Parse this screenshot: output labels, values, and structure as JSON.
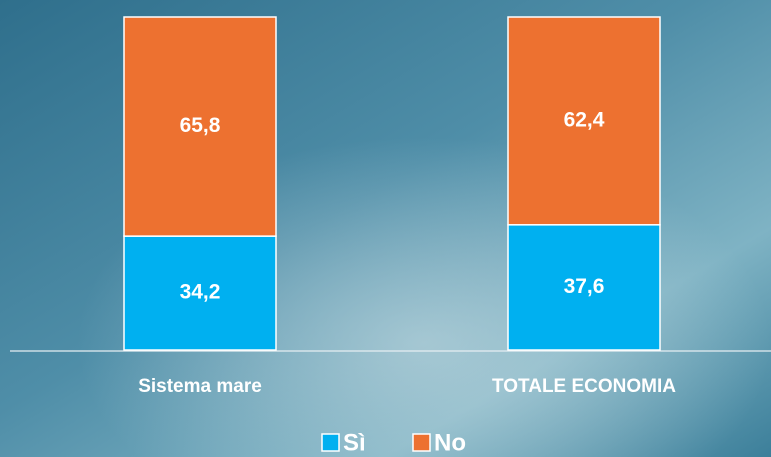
{
  "chart_data": {
    "type": "stacked-bar",
    "categories": [
      "Sistema mare",
      "TOTALE ECONOMIA"
    ],
    "series": [
      {
        "name": "Sì",
        "color": "#00b0f0",
        "values": [
          34.2,
          37.6
        ],
        "value_labels": [
          "34,2",
          "37,6"
        ]
      },
      {
        "name": "No",
        "color": "#ed7130",
        "values": [
          65.8,
          62.4
        ],
        "value_labels": [
          "65,8",
          "62,4"
        ]
      }
    ],
    "ylim": [
      0,
      100
    ],
    "legend": "bottom"
  }
}
